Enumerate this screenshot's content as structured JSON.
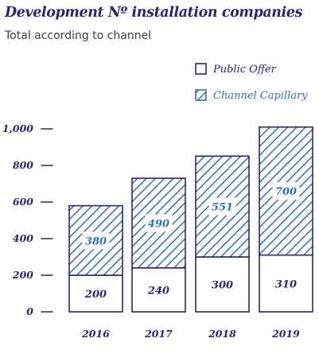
{
  "header": {
    "title": "Development Nº installation companies",
    "subtitle": "Total according to channel"
  },
  "chart_data": {
    "type": "bar",
    "stacked": true,
    "categories": [
      "2016",
      "2017",
      "2018",
      "2019"
    ],
    "series": [
      {
        "name": "Public Offer",
        "values": [
          200,
          240,
          300,
          310
        ],
        "color": "#ffffff",
        "pattern": "none"
      },
      {
        "name": "Channel Capillary",
        "values": [
          380,
          490,
          551,
          700
        ],
        "color": "#2f6fc0",
        "pattern": "diagonal-hatch"
      }
    ],
    "yticks": [
      "0",
      "200",
      "400",
      "600",
      "800",
      "1,000"
    ],
    "ylim": [
      0,
      1000
    ],
    "grid": false,
    "legend_position": "top-right",
    "colors": {
      "ink": "#2a2670",
      "bar_outline": "#2a2670",
      "hatch": "#2f6fc0"
    }
  }
}
